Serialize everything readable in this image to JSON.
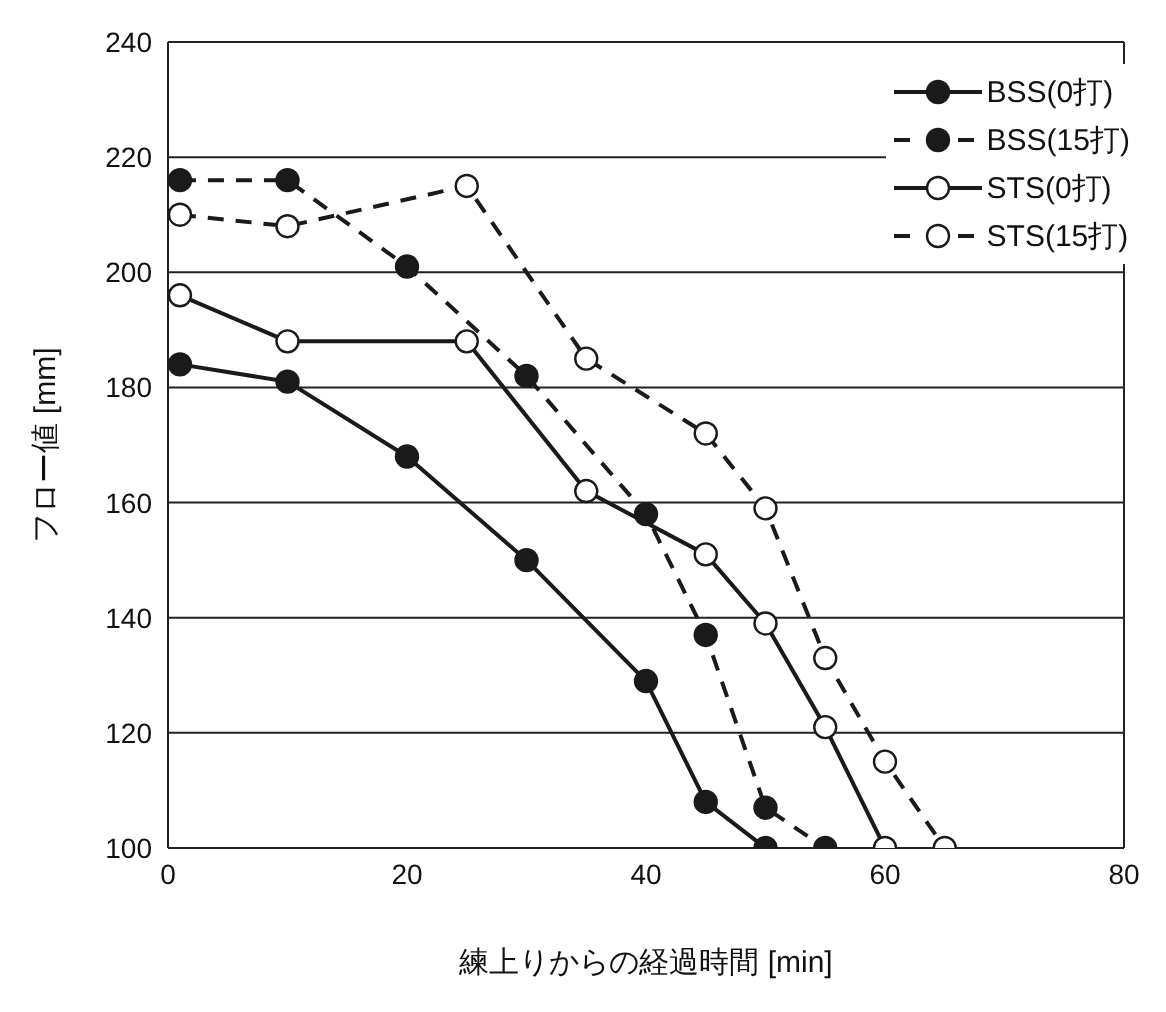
{
  "chart_data": {
    "type": "line",
    "xlabel": "練上りからの経過時間 [min]",
    "ylabel": "フロー値 [mm]",
    "xlim": [
      0,
      80
    ],
    "xticks": [
      0,
      20,
      40,
      60,
      80
    ],
    "ylim": [
      100,
      240
    ],
    "yticks": [
      100,
      120,
      140,
      160,
      180,
      200,
      220,
      240
    ],
    "grid": "y",
    "legend": "top right",
    "marker": "circle",
    "series": [
      {
        "name": "BSS(0打)",
        "color": "#1a1a1a",
        "line_style": "solid",
        "x": [
          1,
          10,
          20,
          30,
          40,
          45,
          50
        ],
        "values": [
          184,
          181,
          168,
          150,
          129,
          108,
          100
        ]
      },
      {
        "name": "BSS(15打)",
        "color": "#1a1a1a",
        "line_style": "dashed",
        "x": [
          1,
          10,
          20,
          30,
          40,
          45,
          50,
          55
        ],
        "values": [
          216,
          216,
          201,
          182,
          158,
          137,
          107,
          100
        ]
      },
      {
        "name": "STS(0打)",
        "color": "#1a1a1a",
        "line_style": "solid",
        "marker": "circle-open",
        "x": [
          1,
          10,
          25,
          35,
          45,
          50,
          55,
          60
        ],
        "values": [
          196,
          188,
          188,
          162,
          151,
          139,
          121,
          100
        ]
      },
      {
        "name": "STS(15打)",
        "color": "#1a1a1a",
        "line_style": "dashed",
        "marker": "circle-open",
        "x": [
          1,
          10,
          25,
          35,
          45,
          50,
          55,
          60,
          65
        ],
        "values": [
          210,
          208,
          215,
          185,
          172,
          159,
          133,
          115,
          100
        ]
      }
    ]
  }
}
